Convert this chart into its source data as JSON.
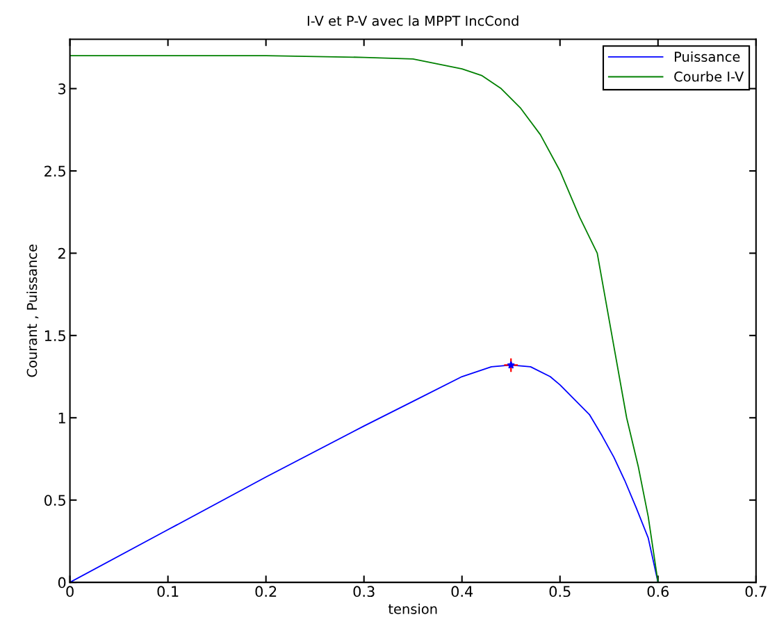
{
  "chart_data": {
    "type": "line",
    "title": "I-V et P-V avec la MPPT IncCond",
    "xlabel": "tension",
    "ylabel": "Courant , Puissance",
    "xlim": [
      0,
      0.7
    ],
    "ylim": [
      0,
      3.3
    ],
    "xticks": [
      0,
      0.1,
      0.2,
      0.3,
      0.4,
      0.5,
      0.6,
      0.7
    ],
    "yticks": [
      0,
      0.5,
      1,
      1.5,
      2,
      2.5,
      3
    ],
    "legend": "top right",
    "grid": false,
    "marker": "none",
    "series": [
      {
        "name": "Puissance",
        "color": "#0000ff",
        "x": [
          0,
          0.1,
          0.2,
          0.3,
          0.35,
          0.4,
          0.43,
          0.45,
          0.47,
          0.49,
          0.5,
          0.52,
          0.53,
          0.543,
          0.555,
          0.566,
          0.578,
          0.59,
          0.6
        ],
        "values": [
          0,
          0.32,
          0.64,
          0.95,
          1.1,
          1.25,
          1.31,
          1.32,
          1.31,
          1.25,
          1.2,
          1.08,
          1.02,
          0.89,
          0.76,
          0.62,
          0.45,
          0.27,
          0
        ]
      },
      {
        "name": "Courbe I-V",
        "color": "#008000",
        "x": [
          0,
          0.2,
          0.3,
          0.35,
          0.4,
          0.42,
          0.44,
          0.46,
          0.48,
          0.5,
          0.52,
          0.538,
          0.553,
          0.568,
          0.58,
          0.59,
          0.6
        ],
        "values": [
          3.2,
          3.2,
          3.19,
          3.18,
          3.12,
          3.08,
          3.0,
          2.88,
          2.72,
          2.5,
          2.22,
          2.0,
          1.5,
          1.0,
          0.7,
          0.4,
          0
        ]
      },
      {
        "type": "scatter",
        "color": "#ff0000",
        "marker": "cross",
        "x": [
          0.45
        ],
        "values": [
          1.32
        ]
      },
      {
        "type": "scatter",
        "color": "#0000ff",
        "marker": "star",
        "x": [
          0.45
        ],
        "values": [
          1.32
        ]
      }
    ]
  }
}
